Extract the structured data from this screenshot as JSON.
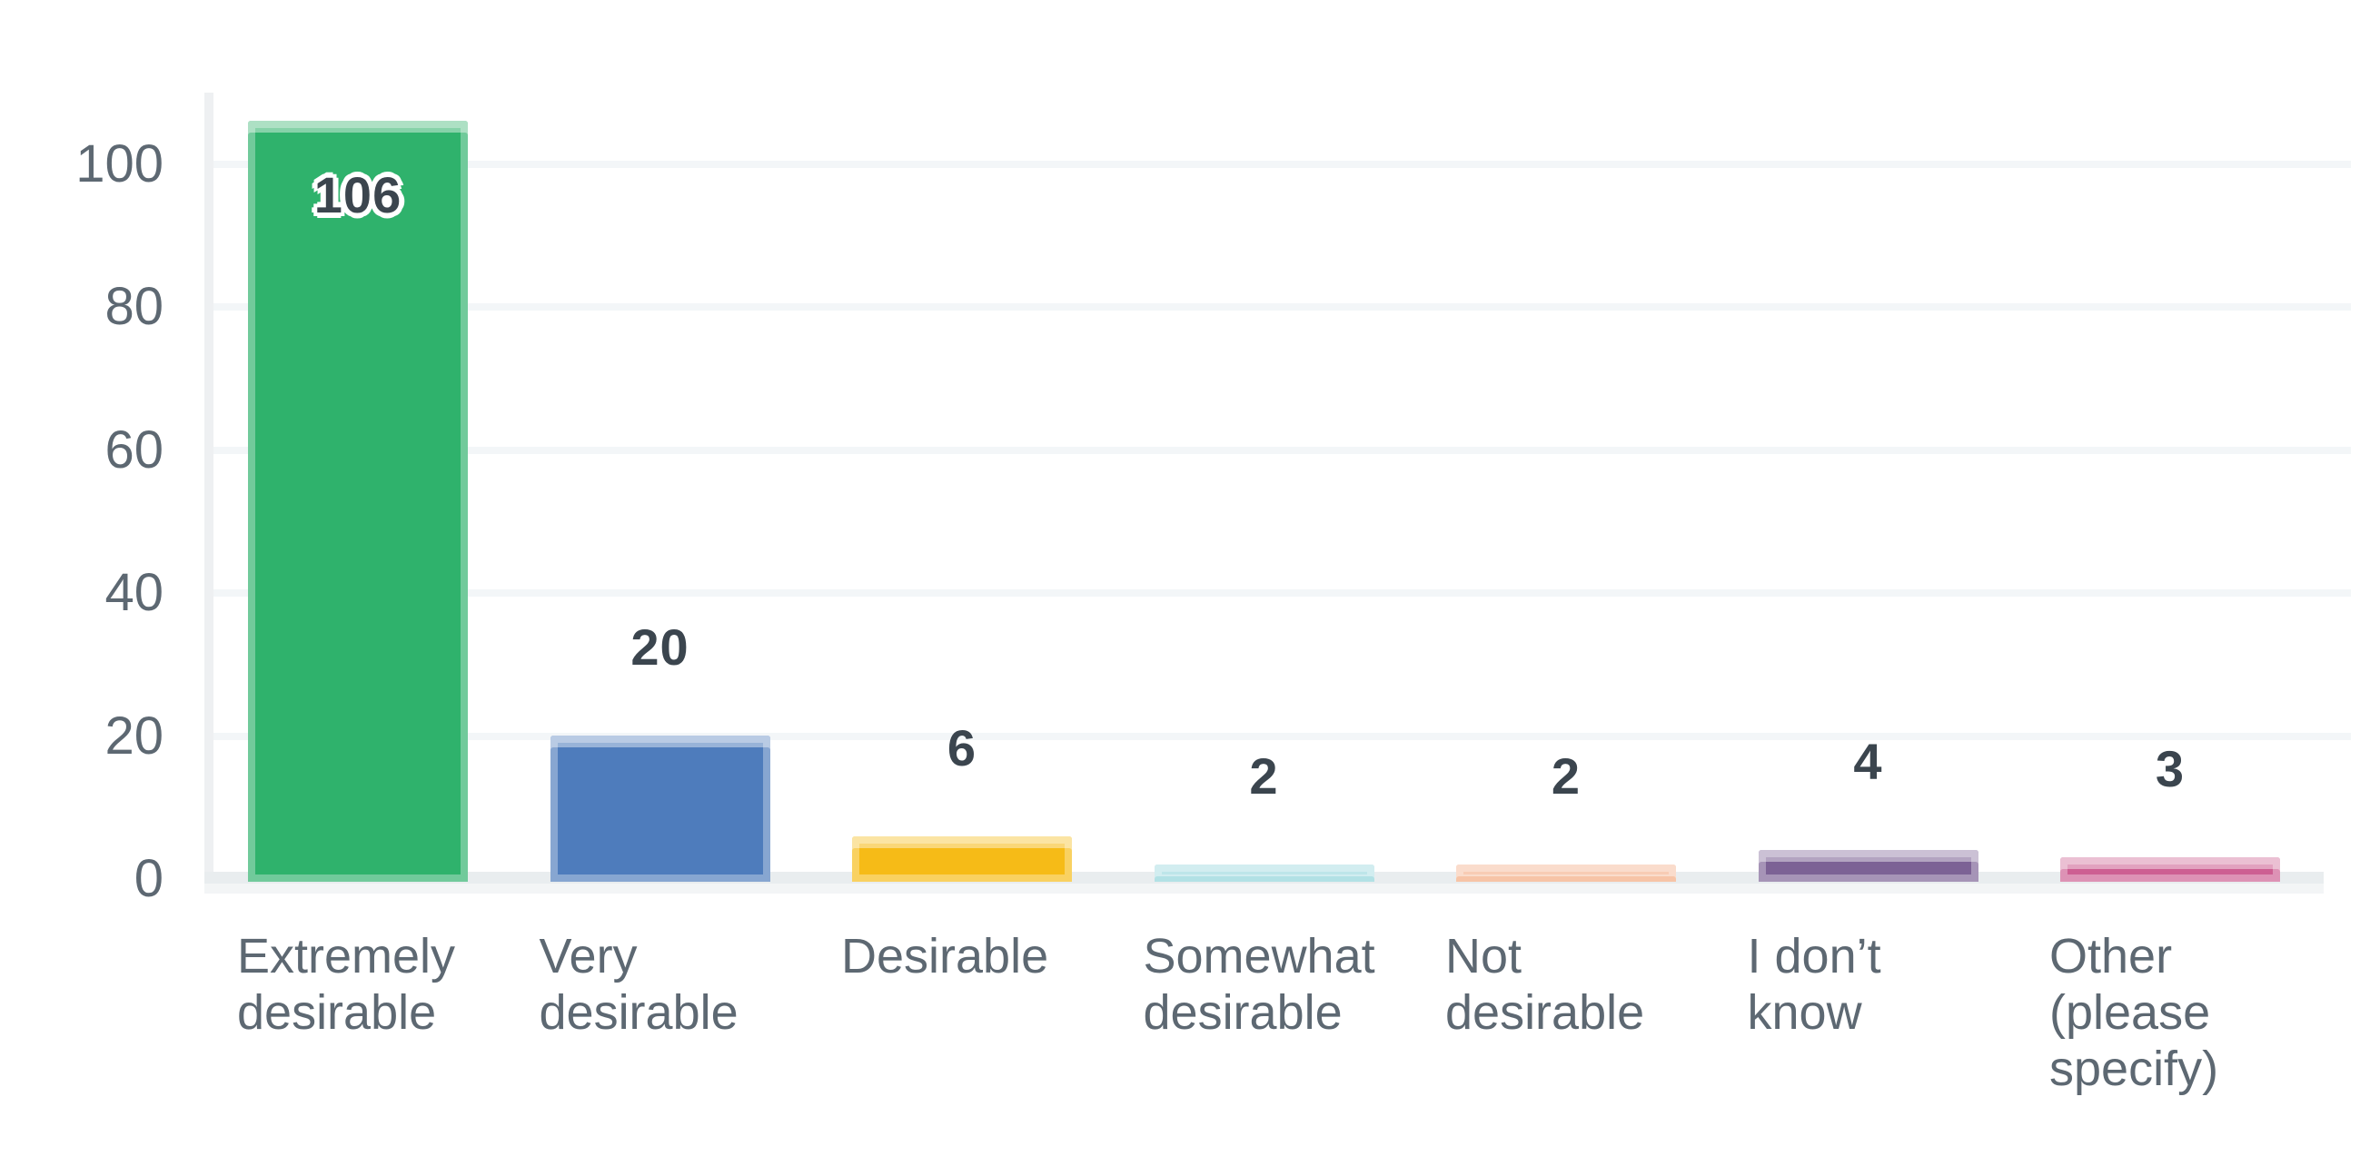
{
  "chart_data": {
    "type": "bar",
    "title": "",
    "xlabel": "",
    "ylabel": "",
    "categories": [
      "Extremely desirable",
      "Very desirable",
      "Desirable",
      "Somewhat desirable",
      "Not desirable",
      "I don’t know",
      "Other (please specify)"
    ],
    "values": [
      106,
      20,
      6,
      2,
      2,
      4,
      3
    ],
    "value_labels": [
      "106",
      "20",
      "6",
      "2",
      "2",
      "4",
      "3"
    ],
    "bar_colors": [
      "#2fb26c",
      "#4e7cbc",
      "#f6bb17",
      "#8ed3d9",
      "#f3a87e",
      "#7c6295",
      "#cd5f92"
    ],
    "yticks": [
      0,
      20,
      40,
      60,
      80,
      100
    ],
    "ylim": [
      0,
      110
    ],
    "grid": true,
    "legend": false,
    "colors": {
      "background": "#ffffff",
      "gridline": "#f3f6f8",
      "axis_line": "#eef0f2",
      "baseline": "#e9edef",
      "tick_text": "#5d6872",
      "category_text": "#5d6872",
      "value_text": "#3b454e"
    }
  }
}
